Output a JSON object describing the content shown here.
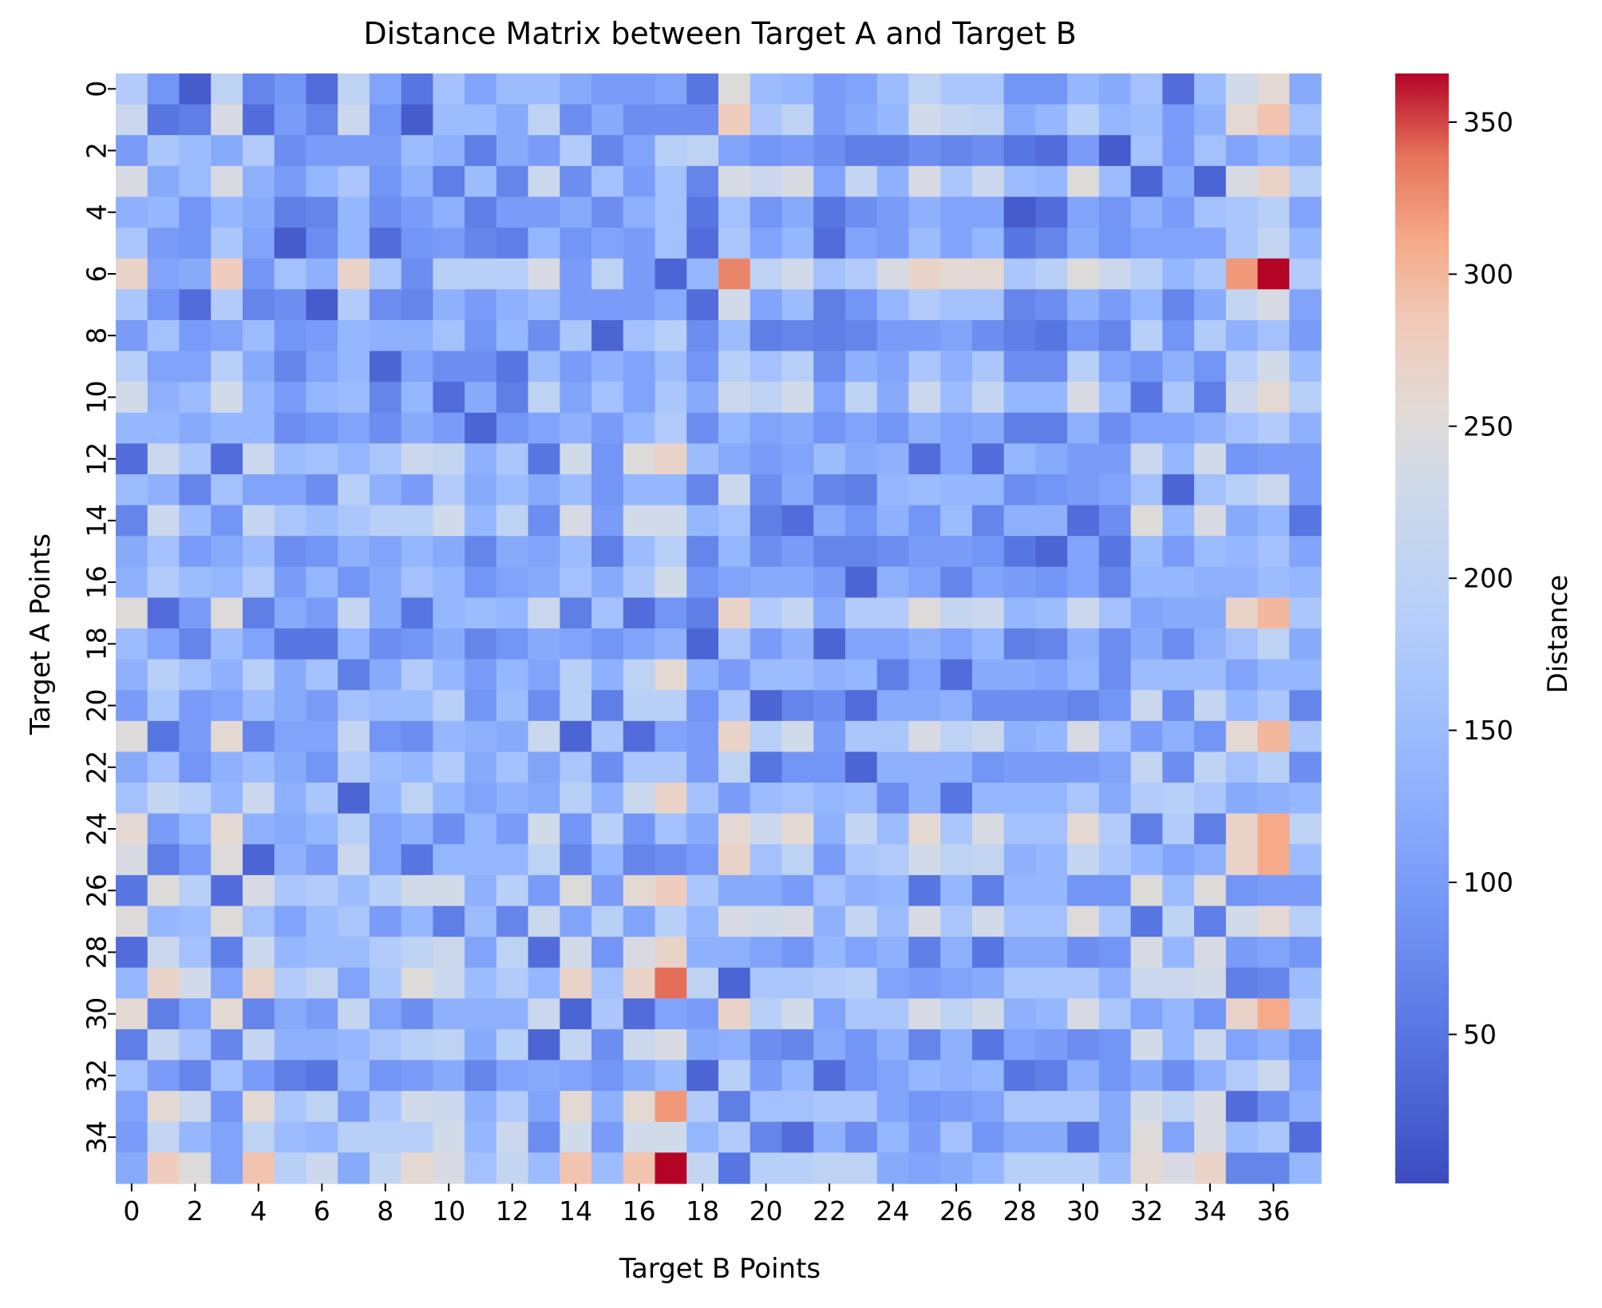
{
  "chart_data": {
    "type": "heatmap",
    "title": "Distance Matrix between Target A and Target B",
    "xlabel": "Target B Points",
    "ylabel": "Target A Points",
    "colorbar_label": "Distance",
    "colormap": "coolwarm",
    "colorbar_ticks": [
      50,
      100,
      150,
      200,
      250,
      300,
      350
    ],
    "vmin": 1,
    "vmax": 366,
    "x_tick_labels": [
      "0",
      "2",
      "4",
      "6",
      "8",
      "10",
      "12",
      "14",
      "16",
      "18",
      "20",
      "22",
      "24",
      "26",
      "28",
      "30",
      "32",
      "34",
      "36"
    ],
    "y_tick_labels": [
      "0",
      "2",
      "4",
      "6",
      "8",
      "10",
      "12",
      "14",
      "16",
      "18",
      "20",
      "22",
      "24",
      "26",
      "28",
      "30",
      "32",
      "34"
    ],
    "x_tick_values": [
      0,
      2,
      4,
      6,
      8,
      10,
      12,
      14,
      16,
      18,
      20,
      22,
      24,
      26,
      28,
      30,
      32,
      34,
      36
    ],
    "y_tick_values": [
      0,
      2,
      4,
      6,
      8,
      10,
      12,
      14,
      16,
      18,
      20,
      22,
      24,
      26,
      28,
      30,
      32,
      34
    ],
    "n_rows": 36,
    "n_cols": 38,
    "values": [
      [
        180,
        90,
        20,
        200,
        70,
        90,
        40,
        200,
        110,
        50,
        160,
        110,
        150,
        150,
        120,
        100,
        100,
        110,
        50,
        250,
        150,
        140,
        100,
        110,
        150,
        200,
        170,
        170,
        90,
        90,
        140,
        120,
        160,
        40,
        150,
        230,
        260,
        120
      ],
      [
        220,
        50,
        60,
        240,
        40,
        100,
        70,
        220,
        90,
        20,
        150,
        150,
        120,
        200,
        80,
        120,
        80,
        80,
        80,
        280,
        170,
        200,
        100,
        120,
        140,
        230,
        210,
        200,
        120,
        140,
        190,
        140,
        150,
        100,
        130,
        260,
        290,
        160
      ],
      [
        100,
        170,
        150,
        120,
        180,
        80,
        100,
        100,
        100,
        150,
        130,
        60,
        120,
        100,
        180,
        70,
        110,
        190,
        200,
        110,
        90,
        100,
        80,
        60,
        60,
        80,
        70,
        80,
        50,
        40,
        100,
        20,
        160,
        100,
        160,
        110,
        140,
        120
      ],
      [
        240,
        120,
        150,
        240,
        130,
        100,
        140,
        170,
        90,
        130,
        60,
        150,
        70,
        220,
        80,
        160,
        100,
        160,
        70,
        240,
        220,
        240,
        110,
        210,
        130,
        240,
        170,
        220,
        150,
        140,
        250,
        150,
        30,
        120,
        30,
        240,
        270,
        190
      ],
      [
        130,
        140,
        90,
        140,
        120,
        60,
        70,
        140,
        80,
        100,
        130,
        60,
        100,
        100,
        120,
        80,
        130,
        160,
        50,
        160,
        90,
        120,
        50,
        80,
        100,
        130,
        110,
        110,
        20,
        40,
        110,
        90,
        130,
        100,
        160,
        170,
        190,
        110
      ],
      [
        170,
        100,
        90,
        170,
        110,
        20,
        80,
        140,
        40,
        90,
        100,
        70,
        60,
        140,
        90,
        110,
        100,
        160,
        40,
        170,
        110,
        140,
        40,
        110,
        100,
        150,
        110,
        140,
        50,
        70,
        120,
        90,
        110,
        110,
        110,
        170,
        210,
        140
      ],
      [
        270,
        110,
        120,
        280,
        90,
        160,
        130,
        270,
        170,
        80,
        190,
        190,
        190,
        240,
        100,
        200,
        100,
        30,
        140,
        330,
        200,
        230,
        160,
        180,
        240,
        270,
        260,
        260,
        170,
        190,
        250,
        220,
        190,
        140,
        170,
        320,
        366,
        180
      ],
      [
        170,
        90,
        40,
        180,
        70,
        80,
        20,
        180,
        80,
        70,
        130,
        100,
        130,
        150,
        100,
        100,
        100,
        120,
        40,
        230,
        110,
        150,
        60,
        90,
        140,
        180,
        160,
        160,
        70,
        80,
        130,
        100,
        140,
        70,
        120,
        210,
        240,
        110
      ],
      [
        100,
        160,
        100,
        110,
        150,
        90,
        100,
        140,
        130,
        130,
        160,
        90,
        140,
        80,
        170,
        30,
        160,
        190,
        80,
        150,
        60,
        70,
        60,
        70,
        100,
        100,
        110,
        80,
        60,
        50,
        90,
        70,
        190,
        90,
        180,
        130,
        160,
        100
      ],
      [
        190,
        110,
        110,
        190,
        120,
        70,
        110,
        140,
        30,
        110,
        80,
        80,
        50,
        150,
        100,
        130,
        110,
        150,
        90,
        190,
        160,
        190,
        80,
        130,
        110,
        170,
        130,
        170,
        80,
        80,
        190,
        110,
        90,
        130,
        90,
        190,
        230,
        150
      ],
      [
        230,
        130,
        150,
        230,
        140,
        100,
        140,
        150,
        70,
        140,
        40,
        120,
        60,
        200,
        110,
        160,
        110,
        170,
        120,
        220,
        200,
        230,
        110,
        200,
        120,
        220,
        150,
        210,
        140,
        140,
        240,
        150,
        50,
        170,
        60,
        220,
        260,
        190
      ],
      [
        140,
        140,
        120,
        140,
        140,
        80,
        90,
        110,
        80,
        120,
        100,
        30,
        90,
        110,
        130,
        100,
        140,
        180,
        80,
        140,
        110,
        120,
        90,
        110,
        90,
        130,
        110,
        120,
        60,
        60,
        130,
        80,
        110,
        110,
        130,
        160,
        180,
        130
      ],
      [
        40,
        220,
        170,
        40,
        220,
        150,
        160,
        140,
        170,
        220,
        210,
        130,
        170,
        50,
        230,
        90,
        250,
        270,
        150,
        120,
        100,
        110,
        150,
        120,
        130,
        40,
        110,
        40,
        140,
        120,
        100,
        100,
        220,
        140,
        230,
        90,
        100,
        100
      ],
      [
        150,
        130,
        70,
        160,
        110,
        110,
        80,
        190,
        130,
        100,
        180,
        120,
        150,
        120,
        150,
        90,
        140,
        140,
        70,
        220,
        80,
        120,
        70,
        60,
        140,
        150,
        140,
        140,
        80,
        90,
        100,
        110,
        160,
        30,
        160,
        190,
        220,
        100
      ],
      [
        70,
        220,
        150,
        90,
        210,
        170,
        150,
        170,
        190,
        190,
        230,
        140,
        200,
        80,
        240,
        100,
        230,
        230,
        140,
        160,
        60,
        40,
        120,
        90,
        130,
        90,
        150,
        70,
        130,
        130,
        40,
        80,
        250,
        140,
        240,
        120,
        140,
        50
      ],
      [
        120,
        160,
        100,
        120,
        150,
        80,
        90,
        130,
        110,
        140,
        120,
        70,
        120,
        110,
        150,
        60,
        150,
        190,
        70,
        140,
        80,
        100,
        70,
        70,
        80,
        100,
        100,
        90,
        50,
        30,
        110,
        50,
        150,
        100,
        150,
        140,
        160,
        110
      ],
      [
        130,
        180,
        150,
        140,
        180,
        100,
        140,
        90,
        120,
        160,
        140,
        90,
        110,
        120,
        160,
        120,
        170,
        230,
        90,
        110,
        120,
        120,
        100,
        30,
        130,
        110,
        70,
        110,
        100,
        90,
        110,
        70,
        140,
        140,
        130,
        130,
        150,
        140
      ],
      [
        250,
        40,
        100,
        250,
        60,
        120,
        100,
        210,
        120,
        50,
        140,
        150,
        140,
        220,
        60,
        160,
        40,
        90,
        60,
        270,
        180,
        210,
        120,
        180,
        180,
        250,
        210,
        220,
        140,
        150,
        220,
        160,
        110,
        120,
        120,
        270,
        300,
        170
      ],
      [
        150,
        110,
        70,
        150,
        110,
        50,
        50,
        140,
        80,
        90,
        120,
        70,
        90,
        120,
        110,
        90,
        110,
        130,
        30,
        170,
        100,
        130,
        30,
        110,
        110,
        130,
        110,
        140,
        60,
        70,
        130,
        80,
        120,
        80,
        130,
        160,
        200,
        120
      ],
      [
        130,
        190,
        160,
        130,
        190,
        120,
        160,
        60,
        120,
        180,
        140,
        100,
        140,
        110,
        190,
        130,
        200,
        260,
        130,
        100,
        150,
        150,
        130,
        140,
        60,
        110,
        40,
        120,
        120,
        110,
        140,
        80,
        150,
        150,
        150,
        110,
        140,
        140
      ],
      [
        100,
        170,
        100,
        110,
        150,
        120,
        100,
        160,
        150,
        150,
        190,
        90,
        150,
        80,
        190,
        60,
        190,
        190,
        90,
        170,
        30,
        70,
        80,
        40,
        120,
        120,
        130,
        80,
        80,
        80,
        70,
        90,
        220,
        80,
        210,
        140,
        170,
        70
      ],
      [
        250,
        50,
        100,
        260,
        70,
        110,
        110,
        210,
        90,
        80,
        140,
        130,
        120,
        220,
        30,
        170,
        40,
        110,
        100,
        270,
        190,
        230,
        100,
        170,
        170,
        240,
        200,
        220,
        130,
        140,
        240,
        160,
        100,
        130,
        90,
        260,
        300,
        170
      ],
      [
        120,
        160,
        90,
        130,
        150,
        120,
        90,
        180,
        150,
        140,
        180,
        120,
        160,
        110,
        170,
        80,
        170,
        170,
        100,
        200,
        50,
        90,
        90,
        30,
        130,
        130,
        130,
        90,
        100,
        100,
        100,
        110,
        210,
        80,
        200,
        160,
        190,
        80
      ],
      [
        160,
        210,
        190,
        140,
        220,
        130,
        170,
        30,
        140,
        200,
        140,
        110,
        130,
        120,
        190,
        130,
        220,
        270,
        160,
        100,
        150,
        160,
        140,
        150,
        80,
        130,
        50,
        140,
        140,
        140,
        170,
        120,
        180,
        190,
        170,
        120,
        130,
        140
      ],
      [
        260,
        100,
        140,
        260,
        130,
        120,
        140,
        190,
        110,
        130,
        80,
        140,
        100,
        230,
        90,
        190,
        90,
        160,
        120,
        260,
        220,
        260,
        130,
        210,
        150,
        260,
        170,
        240,
        160,
        160,
        260,
        180,
        60,
        180,
        60,
        270,
        310,
        200
      ],
      [
        240,
        60,
        100,
        250,
        30,
        130,
        100,
        220,
        110,
        50,
        140,
        140,
        140,
        200,
        70,
        140,
        70,
        80,
        100,
        270,
        160,
        200,
        100,
        170,
        180,
        230,
        200,
        210,
        130,
        140,
        210,
        170,
        140,
        110,
        130,
        270,
        310,
        150
      ],
      [
        50,
        250,
        190,
        40,
        240,
        170,
        180,
        150,
        190,
        230,
        230,
        130,
        190,
        100,
        250,
        100,
        260,
        280,
        170,
        120,
        120,
        100,
        160,
        130,
        140,
        50,
        140,
        60,
        140,
        140,
        90,
        90,
        250,
        150,
        250,
        90,
        100,
        100
      ],
      [
        250,
        140,
        150,
        250,
        160,
        110,
        150,
        170,
        100,
        140,
        60,
        150,
        70,
        220,
        110,
        190,
        110,
        190,
        140,
        240,
        230,
        240,
        130,
        210,
        150,
        240,
        170,
        230,
        160,
        160,
        250,
        170,
        50,
        200,
        60,
        230,
        260,
        190
      ],
      [
        40,
        220,
        160,
        60,
        220,
        140,
        150,
        150,
        180,
        200,
        220,
        110,
        200,
        40,
        230,
        90,
        240,
        270,
        130,
        130,
        110,
        90,
        140,
        110,
        130,
        60,
        130,
        50,
        120,
        120,
        80,
        90,
        240,
        140,
        240,
        100,
        110,
        90
      ],
      [
        140,
        270,
        230,
        110,
        270,
        180,
        210,
        110,
        170,
        250,
        220,
        150,
        180,
        140,
        270,
        160,
        270,
        340,
        200,
        30,
        170,
        170,
        180,
        190,
        110,
        100,
        110,
        120,
        170,
        170,
        170,
        130,
        220,
        220,
        230,
        60,
        70,
        150
      ],
      [
        260,
        60,
        110,
        260,
        70,
        120,
        100,
        210,
        110,
        80,
        130,
        130,
        130,
        220,
        30,
        170,
        40,
        110,
        100,
        270,
        190,
        230,
        110,
        170,
        170,
        240,
        200,
        230,
        130,
        140,
        240,
        170,
        110,
        140,
        90,
        270,
        310,
        180
      ],
      [
        60,
        210,
        160,
        70,
        210,
        130,
        130,
        140,
        170,
        190,
        200,
        120,
        190,
        30,
        210,
        80,
        220,
        240,
        120,
        130,
        80,
        70,
        120,
        90,
        130,
        70,
        130,
        50,
        110,
        100,
        80,
        90,
        230,
        140,
        220,
        110,
        130,
        90
      ],
      [
        160,
        100,
        70,
        160,
        100,
        60,
        50,
        150,
        90,
        100,
        120,
        70,
        110,
        120,
        110,
        90,
        120,
        150,
        30,
        190,
        100,
        140,
        40,
        90,
        110,
        140,
        130,
        140,
        50,
        60,
        130,
        90,
        120,
        80,
        130,
        180,
        220,
        110
      ],
      [
        110,
        260,
        220,
        90,
        260,
        170,
        200,
        100,
        170,
        230,
        220,
        130,
        180,
        110,
        260,
        130,
        260,
        320,
        180,
        60,
        160,
        160,
        170,
        170,
        110,
        90,
        100,
        110,
        170,
        170,
        170,
        120,
        230,
        200,
        240,
        40,
        80,
        130
      ],
      [
        100,
        210,
        140,
        110,
        200,
        150,
        140,
        190,
        190,
        190,
        230,
        140,
        220,
        80,
        230,
        100,
        230,
        230,
        140,
        180,
        70,
        40,
        130,
        80,
        140,
        100,
        160,
        90,
        120,
        120,
        50,
        120,
        250,
        110,
        240,
        150,
        170,
        40
      ],
      [
        120,
        280,
        250,
        110,
        290,
        190,
        220,
        120,
        210,
        260,
        240,
        160,
        210,
        150,
        290,
        150,
        290,
        366,
        210,
        50,
        190,
        190,
        200,
        200,
        120,
        110,
        120,
        140,
        190,
        190,
        190,
        150,
        260,
        240,
        270,
        70,
        70,
        140
      ]
    ]
  }
}
